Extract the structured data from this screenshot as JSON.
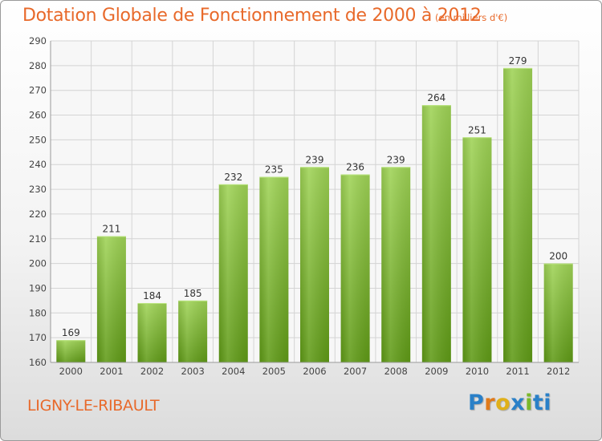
{
  "header": {
    "title": "Dotation Globale de Fonctionnement de 2000 à 2012",
    "unit": "(en milliers d'€)"
  },
  "footer": {
    "commune": "LIGNY-LE-RIBAULT",
    "brand": "Proxiti"
  },
  "colors": {
    "title": "#e8692a",
    "bar_light": "#9fd356",
    "bar_dark": "#5f9a16",
    "grid": "#d4d4d4",
    "axis": "#9a9a9a"
  },
  "chart_data": {
    "type": "bar",
    "title": "Dotation Globale de Fonctionnement de 2000 à 2012",
    "xlabel": "",
    "ylabel": "",
    "categories": [
      "2000",
      "2001",
      "2002",
      "2003",
      "2004",
      "2005",
      "2006",
      "2007",
      "2008",
      "2009",
      "2010",
      "2011",
      "2012"
    ],
    "values": [
      169,
      211,
      184,
      185,
      232,
      235,
      239,
      236,
      239,
      264,
      251,
      279,
      200
    ],
    "ylim": [
      160,
      290
    ],
    "yticks": [
      160,
      170,
      180,
      190,
      200,
      210,
      220,
      230,
      240,
      250,
      260,
      270,
      280,
      290
    ],
    "grid": true,
    "data_labels": true
  }
}
